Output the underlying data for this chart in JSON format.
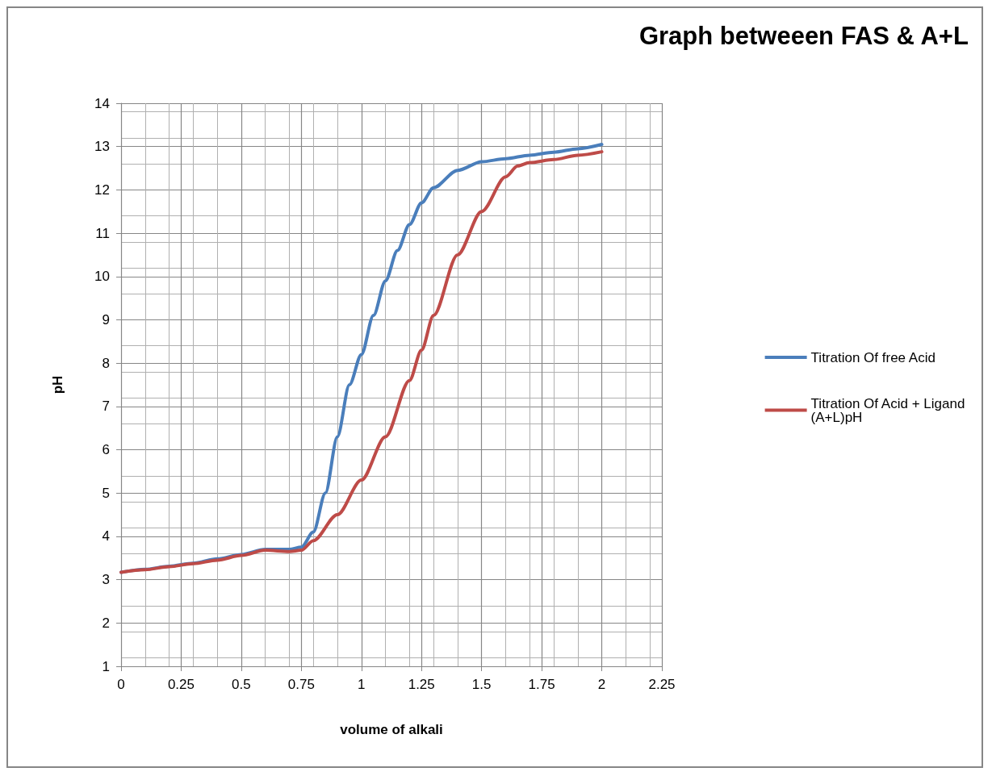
{
  "chart_data": {
    "type": "line",
    "title": "Graph betweeen FAS & A+L",
    "xlabel": "volume of alkali",
    "ylabel": "pH",
    "xlim": [
      0,
      2.25
    ],
    "xticks": [
      0,
      0.25,
      0.5,
      0.75,
      1,
      1.25,
      1.5,
      1.75,
      2,
      2.25
    ],
    "ylim": [
      1,
      14
    ],
    "yticks": [
      1,
      2,
      3,
      4,
      5,
      6,
      7,
      8,
      9,
      10,
      11,
      12,
      13,
      14
    ],
    "grid": true,
    "legend": "right",
    "marker": "none",
    "line_style": "solid",
    "series": [
      {
        "name": "Titration Of free Acid",
        "color": "#4a7ebb",
        "x": [
          0,
          0.1,
          0.2,
          0.3,
          0.4,
          0.5,
          0.6,
          0.7,
          0.75,
          0.8,
          0.85,
          0.9,
          0.95,
          1,
          1.05,
          1.1,
          1.15,
          1.2,
          1.25,
          1.3,
          1.4,
          1.5,
          1.6,
          1.7,
          1.8,
          1.9,
          2
        ],
        "values": [
          3.17,
          3.24,
          3.31,
          3.38,
          3.48,
          3.58,
          3.7,
          3.7,
          3.75,
          4.1,
          5,
          6.3,
          7.5,
          8.2,
          9.1,
          9.9,
          10.6,
          11.2,
          11.7,
          12.05,
          12.45,
          12.65,
          12.72,
          12.8,
          12.87,
          12.95,
          13.05
        ]
      },
      {
        "name": "Titration Of Acid + Ligand (A+L)pH",
        "color": "#be4b48",
        "x": [
          0,
          0.1,
          0.2,
          0.3,
          0.4,
          0.5,
          0.6,
          0.7,
          0.75,
          0.8,
          0.9,
          1,
          1.1,
          1.2,
          1.25,
          1.3,
          1.4,
          1.5,
          1.6,
          1.65,
          1.7,
          1.8,
          1.9,
          2
        ],
        "values": [
          3.17,
          3.23,
          3.3,
          3.37,
          3.45,
          3.56,
          3.68,
          3.65,
          3.68,
          3.9,
          4.5,
          5.3,
          6.3,
          7.6,
          8.3,
          9.1,
          10.5,
          11.5,
          12.3,
          12.55,
          12.63,
          12.7,
          12.8,
          12.88
        ]
      }
    ]
  }
}
